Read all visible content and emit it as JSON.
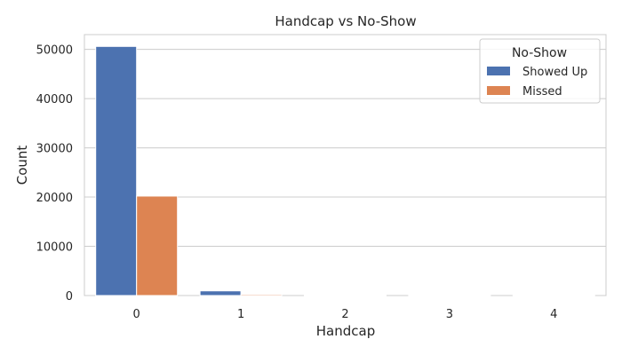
{
  "chart_data": {
    "type": "bar",
    "title": "Handcap vs No-Show",
    "xlabel": "Handcap",
    "ylabel": "Count",
    "categories": [
      "0",
      "1",
      "2",
      "3",
      "4"
    ],
    "series": [
      {
        "name": "Showed Up",
        "color": "#4c72b0",
        "values": [
          50600,
          950,
          150,
          10,
          2
        ]
      },
      {
        "name": "Missed",
        "color": "#dd8452",
        "values": [
          20200,
          230,
          37,
          3,
          1
        ]
      }
    ],
    "ylim": [
      0,
      53000
    ],
    "yticks": [
      0,
      10000,
      20000,
      30000,
      40000,
      50000
    ],
    "grid": true,
    "legend": {
      "title": "No-Show",
      "placement": "top-right"
    }
  }
}
